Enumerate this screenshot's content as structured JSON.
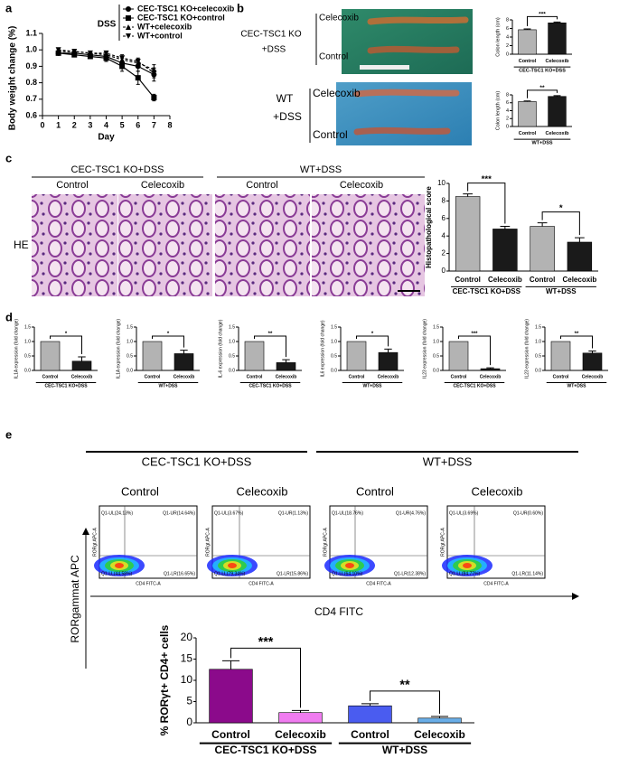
{
  "panel_labels": [
    "a",
    "b",
    "c",
    "d",
    "e"
  ],
  "panel_b": {
    "rows": [
      {
        "group": "CEC-TSC1 KO",
        "treatment": "+DSS",
        "top": "Celecoxib",
        "bottom": "Control"
      },
      {
        "group": "WT",
        "treatment": "+DSS",
        "top": "Celecoxib",
        "bottom": "Control"
      }
    ]
  },
  "panel_c": {
    "headers": [
      {
        "title": "CEC-TSC1 KO+DSS",
        "columns": [
          "Control",
          "Celecoxib"
        ]
      },
      {
        "title": "WT+DSS",
        "columns": [
          "Control",
          "Celecoxib"
        ]
      }
    ],
    "stain": "HE"
  },
  "panel_e": {
    "headers": [
      {
        "title": "CEC-TSC1 KO+DSS",
        "columns": [
          "Control",
          "Celecoxib"
        ]
      },
      {
        "title": "WT+DSS",
        "columns": [
          "Control",
          "Celecoxib"
        ]
      }
    ],
    "y_label": "RORgammat APC",
    "x_label": "CD4 FITC",
    "plots": [
      {
        "x_axis": "CD4 FITC-A",
        "y_axis": "RORgt APC-A",
        "quadrants": [
          "Q1-UL(24.13%)",
          "Q1-UR(14.64%)",
          "Q1-LL(44.58%)",
          "Q1-LR(16.65%)"
        ]
      },
      {
        "x_axis": "CD4 FITC-A",
        "y_axis": "RORgt APC-A",
        "quadrants": [
          "Q1-UL(3.67%)",
          "Q1-UR(1.13%)",
          "Q1-LL(79.34%)",
          "Q1-LR(15.86%)"
        ]
      },
      {
        "x_axis": "CD4 FITC-A",
        "y_axis": "RORgt APC-A",
        "quadrants": [
          "Q1-UL(18.76%)",
          "Q1-UR(4.76%)",
          "Q1-LL(64.10%)",
          "Q1-LR(12.38%)"
        ]
      },
      {
        "x_axis": "CD4 FITC-A",
        "y_axis": "RORgt APC-A",
        "quadrants": [
          "Q1-UL(3.69%)",
          "Q1-UR(0.60%)",
          "Q1-LL(84.77%)",
          "Q1-LR(11.14%)"
        ]
      }
    ]
  },
  "chart_data": [
    {
      "type": "line",
      "xlabel": "Day",
      "ylabel": "Body weight change (%)",
      "legend_title": "DSS",
      "x": [
        1,
        2,
        3,
        4,
        5,
        6,
        7
      ],
      "xlim": [
        0,
        8
      ],
      "xticks": [
        0,
        1,
        2,
        3,
        4,
        5,
        6,
        7,
        8
      ],
      "ylim": [
        0.6,
        1.1
      ],
      "yticks": [
        0.6,
        0.7,
        0.8,
        0.9,
        {
          "value": 1,
          "label": "1.0"
        },
        1.1
      ],
      "series": [
        {
          "name": "CEC-TSC1 KO+celecoxib",
          "color": "#000000",
          "marker": "circle",
          "linestyle": "solid",
          "values": [
            0.98,
            0.98,
            0.97,
            0.96,
            0.92,
            0.9,
            0.85
          ],
          "errors": [
            0.01,
            0.01,
            0.01,
            0.02,
            0.03,
            0.03,
            0.04
          ]
        },
        {
          "name": "CEC-TSC1 KO+control",
          "color": "#000000",
          "marker": "square",
          "linestyle": "solid",
          "values": [
            0.98,
            0.97,
            0.96,
            0.95,
            0.9,
            0.83,
            0.71
          ],
          "errors": [
            0.01,
            0.01,
            0.01,
            0.02,
            0.03,
            0.04,
            0.02
          ]
        },
        {
          "name": "WT+celecoxib",
          "color": "#000000",
          "marker": "triangle-up",
          "linestyle": "dashed",
          "values": [
            0.99,
            0.99,
            0.98,
            0.97,
            0.94,
            0.92,
            0.88
          ],
          "errors": [
            0.01,
            0.01,
            0.01,
            0.01,
            0.02,
            0.02,
            0.03
          ]
        },
        {
          "name": "WT+control",
          "color": "#000000",
          "marker": "triangle-down",
          "linestyle": "dashed",
          "values": [
            1.0,
            0.99,
            0.98,
            0.98,
            0.95,
            0.93,
            0.86
          ],
          "errors": [
            0.01,
            0.01,
            0.01,
            0.01,
            0.02,
            0.02,
            0.03
          ]
        }
      ]
    },
    {
      "type": "bar",
      "ylabel": "Colon length (cm)",
      "categories": [
        "Control",
        "Celecoxib"
      ],
      "values": [
        5.7,
        7.3
      ],
      "errors": [
        0.2,
        0.2
      ],
      "colors": [
        "#b3b3b3",
        "#1a1a1a"
      ],
      "ylim": [
        0,
        8
      ],
      "yticks": [
        0,
        2,
        4,
        6,
        8
      ],
      "groups": [
        "CEC-TSC1 KO+DSS"
      ],
      "significance": [
        "***"
      ]
    },
    {
      "type": "bar",
      "ylabel": "Colon length (cm)",
      "categories": [
        "Control",
        "Celecoxib"
      ],
      "values": [
        6.3,
        7.6
      ],
      "errors": [
        0.15,
        0.2
      ],
      "colors": [
        "#b3b3b3",
        "#1a1a1a"
      ],
      "ylim": [
        0,
        8
      ],
      "yticks": [
        0,
        2,
        4,
        6,
        8
      ],
      "groups": [
        "WT+DSS"
      ],
      "significance": [
        "**"
      ]
    },
    {
      "type": "bar",
      "ylabel": "Histopathological score",
      "categories": [
        "Control",
        "Celecoxib",
        "Control",
        "Celecoxib"
      ],
      "values": [
        8.5,
        4.8,
        5.1,
        3.3
      ],
      "errors": [
        0.3,
        0.3,
        0.4,
        0.5
      ],
      "colors": [
        "#b3b3b3",
        "#1a1a1a",
        "#b3b3b3",
        "#1a1a1a"
      ],
      "ylim": [
        0,
        10
      ],
      "yticks": [
        0,
        2,
        4,
        6,
        8,
        10
      ],
      "groups": [
        "CEC-TSC1 KO+DSS",
        "WT+DSS"
      ],
      "significance": [
        "***",
        "*"
      ]
    },
    {
      "type": "bar",
      "ylabel": "IL1A expression (fold change)",
      "categories": [
        "Control",
        "Celecoxib"
      ],
      "values": [
        1,
        0.32
      ],
      "errors": [
        null,
        0.15
      ],
      "colors": [
        "#b3b3b3",
        "#1a1a1a"
      ],
      "ylim": [
        0,
        1.5
      ],
      "yticks": [
        {
          "value": 0,
          "label": "0.0"
        },
        0.5,
        {
          "value": 1,
          "label": "1.0"
        },
        1.5
      ],
      "groups": [
        "CEC-TSC1 KO+DSS"
      ],
      "significance": [
        "*"
      ]
    },
    {
      "type": "bar",
      "ylabel": "IL1A expression (fold change)",
      "categories": [
        "Control",
        "Celecoxib"
      ],
      "values": [
        1,
        0.58
      ],
      "errors": [
        null,
        0.12
      ],
      "colors": [
        "#b3b3b3",
        "#1a1a1a"
      ],
      "ylim": [
        0,
        1.5
      ],
      "yticks": [
        {
          "value": 0,
          "label": "0.0"
        },
        0.5,
        {
          "value": 1,
          "label": "1.0"
        },
        1.5
      ],
      "groups": [
        "WT+DSS"
      ],
      "significance": [
        "*"
      ]
    },
    {
      "type": "bar",
      "ylabel": "IL-6 expression (fold change)",
      "categories": [
        "Control",
        "Celecoxib"
      ],
      "values": [
        1,
        0.27
      ],
      "errors": [
        null,
        0.1
      ],
      "colors": [
        "#b3b3b3",
        "#1a1a1a"
      ],
      "ylim": [
        0,
        1.5
      ],
      "yticks": [
        {
          "value": 0,
          "label": "0.0"
        },
        0.5,
        {
          "value": 1,
          "label": "1.0"
        },
        1.5
      ],
      "groups": [
        "CEC-TSC1 KO+DSS"
      ],
      "significance": [
        "**"
      ]
    },
    {
      "type": "bar",
      "ylabel": "IL6 expression (fold change)",
      "categories": [
        "Control",
        "Celecoxib"
      ],
      "values": [
        1,
        0.62
      ],
      "errors": [
        null,
        0.12
      ],
      "colors": [
        "#b3b3b3",
        "#1a1a1a"
      ],
      "ylim": [
        0,
        1.5
      ],
      "yticks": [
        {
          "value": 0,
          "label": "0.0"
        },
        0.5,
        {
          "value": 1,
          "label": "1.0"
        },
        1.5
      ],
      "groups": [
        "WT+DSS"
      ],
      "significance": [
        "*"
      ]
    },
    {
      "type": "bar",
      "ylabel": "IL23 expression (fold change)",
      "categories": [
        "Control",
        "Celecoxib"
      ],
      "values": [
        1,
        0.06
      ],
      "errors": [
        null,
        0.03
      ],
      "colors": [
        "#b3b3b3",
        "#1a1a1a"
      ],
      "ylim": [
        0,
        1.5
      ],
      "yticks": [
        {
          "value": 0,
          "label": "0.0"
        },
        0.5,
        {
          "value": 1,
          "label": "1.0"
        },
        1.5
      ],
      "groups": [
        "CEC-TSC1 KO+DSS"
      ],
      "significance": [
        "***"
      ]
    },
    {
      "type": "bar",
      "ylabel": "IL23 expression (fold change)",
      "categories": [
        "Control",
        "Celecoxib"
      ],
      "values": [
        1,
        0.6
      ],
      "errors": [
        null,
        0.07
      ],
      "colors": [
        "#b3b3b3",
        "#1a1a1a"
      ],
      "ylim": [
        0,
        1.5
      ],
      "yticks": [
        {
          "value": 0,
          "label": "0.0"
        },
        0.5,
        {
          "value": 1,
          "label": "1.0"
        },
        1.5
      ],
      "groups": [
        "WT+DSS"
      ],
      "significance": [
        "**"
      ]
    },
    {
      "type": "bar",
      "ylabel": "% RORγt+ CD4+ cells",
      "categories": [
        "Control",
        "Celecoxib",
        "Control",
        "Celecoxib"
      ],
      "values": [
        12.6,
        2.4,
        4.0,
        1.1
      ],
      "errors": [
        2.0,
        0.5,
        0.5,
        0.4
      ],
      "colors": [
        "#8b0a8b",
        "#f07cf0",
        "#4a5cf0",
        "#6aaee8"
      ],
      "ylim": [
        0,
        20
      ],
      "yticks": [
        0,
        5,
        10,
        15,
        20
      ],
      "groups": [
        "CEC-TSC1 KO+DSS",
        "WT+DSS"
      ],
      "significance": [
        "***",
        "**"
      ]
    }
  ]
}
